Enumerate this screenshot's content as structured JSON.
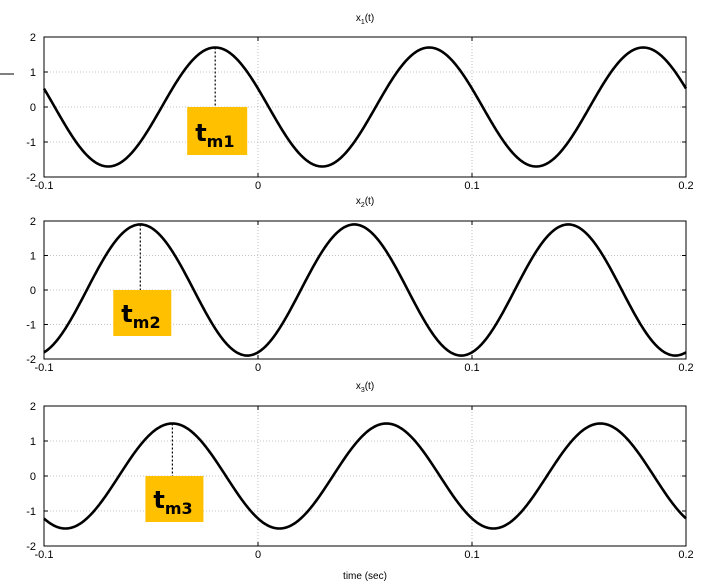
{
  "chart_data": [
    {
      "type": "line",
      "title_main": "x",
      "title_sub": "1",
      "title_tail": "(t)",
      "xlim": [
        -0.1,
        0.2
      ],
      "ylim": [
        -2,
        2
      ],
      "xticks": [
        -0.1,
        0,
        0.1,
        0.2
      ],
      "xtick_labels": [
        "-0.1",
        "0",
        "0.1",
        "0.2"
      ],
      "yticks": [
        -2,
        -1,
        0,
        1,
        2
      ],
      "ytick_labels": [
        "-2",
        "-1",
        "0",
        "1",
        "2"
      ],
      "grid": true,
      "series": [
        {
          "function": "amplitude*cos(2*pi*frequency*(t - peak_time))",
          "amplitude": 1.7,
          "frequency": 10,
          "peak_time": -0.02
        }
      ],
      "marker": {
        "label_main": "t",
        "label_sub": "m1",
        "t": -0.02,
        "color": "#ffc000"
      }
    },
    {
      "type": "line",
      "title_main": "x",
      "title_sub": "2",
      "title_tail": "(t)",
      "xlim": [
        -0.1,
        0.2
      ],
      "ylim": [
        -2,
        2
      ],
      "xticks": [
        -0.1,
        0,
        0.1,
        0.2
      ],
      "xtick_labels": [
        "-0.1",
        "0",
        "0.1",
        "0.2"
      ],
      "yticks": [
        -2,
        -1,
        0,
        1,
        2
      ],
      "ytick_labels": [
        "-2",
        "-1",
        "0",
        "1",
        "2"
      ],
      "grid": true,
      "series": [
        {
          "function": "amplitude*cos(2*pi*frequency*(t - peak_time))",
          "amplitude": 1.9,
          "frequency": 10,
          "peak_time": -0.055
        }
      ],
      "marker": {
        "label_main": "t",
        "label_sub": "m2",
        "t": -0.055,
        "color": "#ffc000"
      }
    },
    {
      "type": "line",
      "title_main": "x",
      "title_sub": "3",
      "title_tail": "(t)",
      "xlim": [
        -0.1,
        0.2
      ],
      "ylim": [
        -2,
        2
      ],
      "xticks": [
        -0.1,
        0,
        0.1,
        0.2
      ],
      "xtick_labels": [
        "-0.1",
        "0",
        "0.1",
        "0.2"
      ],
      "yticks": [
        -2,
        -1,
        0,
        1,
        2
      ],
      "ytick_labels": [
        "-2",
        "-1",
        "0",
        "1",
        "2"
      ],
      "grid": true,
      "xlabel": "time  (sec)",
      "series": [
        {
          "function": "amplitude*cos(2*pi*frequency*(t - peak_time))",
          "amplitude": 1.5,
          "frequency": 10,
          "peak_time": -0.04
        }
      ],
      "marker": {
        "label_main": "t",
        "label_sub": "m3",
        "t": -0.04,
        "color": "#ffc000"
      }
    }
  ]
}
